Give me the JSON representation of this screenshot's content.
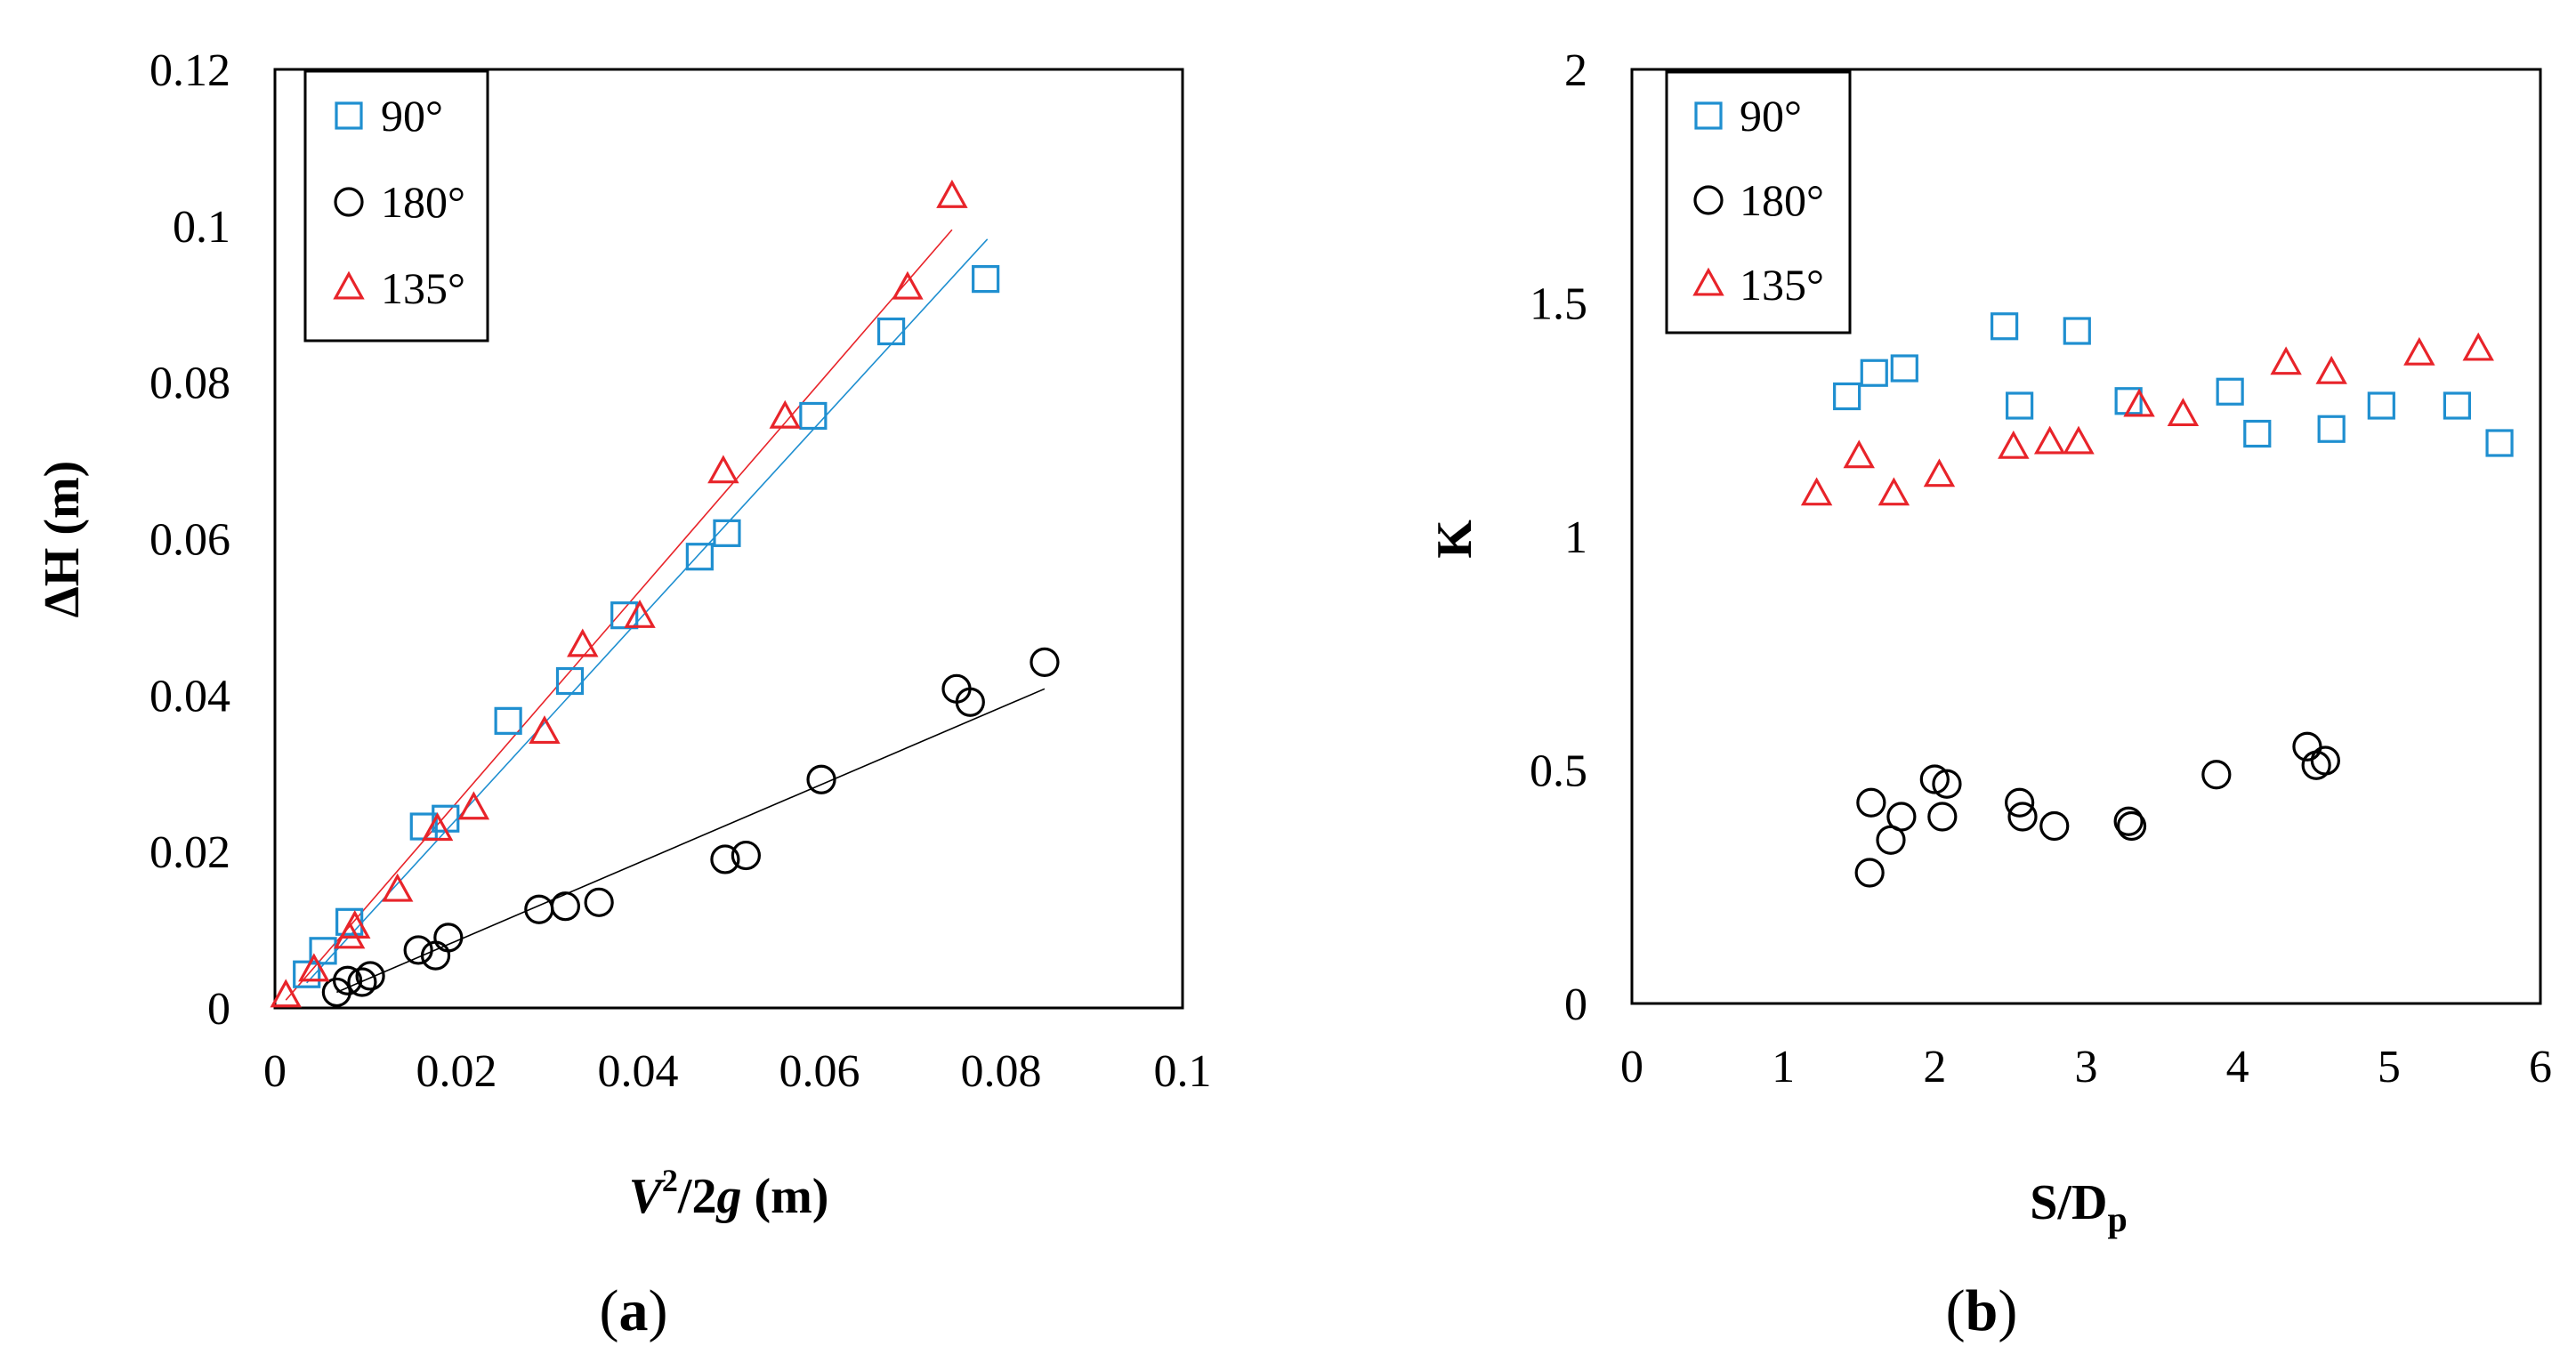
{
  "chart_data": [
    {
      "type": "scatter",
      "panel_label": "(a)",
      "panel_letter": "a",
      "xlabel_var": "V",
      "xlabel_sup": "2",
      "xlabel_slash": "/2",
      "xlabel_g": "g",
      "xlabel_unit": " (m)",
      "ylabel": "ΔH (m)",
      "xlim": [
        0,
        0.1
      ],
      "ylim": [
        0,
        0.12
      ],
      "xticks": [
        "0",
        "0.02",
        "0.04",
        "0.06",
        "0.08",
        "0.1"
      ],
      "yticks": [
        "0",
        "0.02",
        "0.04",
        "0.06",
        "0.08",
        "0.1",
        "0.12"
      ],
      "legend_position": "top-left",
      "series": [
        {
          "name": "90°",
          "marker": "square",
          "color": "#1f8fd0",
          "x": [
            0.0035,
            0.0053,
            0.0082,
            0.0164,
            0.0188,
            0.0257,
            0.0325,
            0.0385,
            0.0468,
            0.0498,
            0.0593,
            0.0679,
            0.0783
          ],
          "y": [
            0.0043,
            0.0073,
            0.011,
            0.0232,
            0.0242,
            0.0367,
            0.0418,
            0.0502,
            0.0577,
            0.0607,
            0.0757,
            0.0865,
            0.0932
          ],
          "trendline": [
            [
              0.0035,
              0.0032
            ],
            [
              0.0785,
              0.0983
            ]
          ]
        },
        {
          "name": "180°",
          "marker": "circle",
          "color": "#000000",
          "x": [
            0.0068,
            0.008,
            0.0096,
            0.0105,
            0.0158,
            0.0177,
            0.0191,
            0.0291,
            0.032,
            0.0357,
            0.0496,
            0.0519,
            0.0602,
            0.0751,
            0.0766,
            0.0848
          ],
          "y": [
            0.002,
            0.0035,
            0.0033,
            0.0041,
            0.0074,
            0.0067,
            0.009,
            0.0126,
            0.013,
            0.0135,
            0.019,
            0.0195,
            0.0292,
            0.0408,
            0.0391,
            0.0442
          ],
          "trendline": [
            [
              0.0068,
              0.002
            ],
            [
              0.0848,
              0.0408
            ]
          ]
        },
        {
          "name": "135°",
          "marker": "triangle",
          "color": "#e8242a",
          "x": [
            0.0012,
            0.0043,
            0.0082,
            0.0088,
            0.0135,
            0.0179,
            0.0219,
            0.0297,
            0.0339,
            0.0402,
            0.0494,
            0.0562,
            0.0697,
            0.0746
          ],
          "y": [
            0.0015,
            0.0048,
            0.009,
            0.0103,
            0.015,
            0.0228,
            0.0255,
            0.0352,
            0.0463,
            0.05,
            0.0685,
            0.0755,
            0.092,
            0.1037
          ],
          "trendline": [
            [
              0.0012,
              0.001
            ],
            [
              0.0746,
              0.0995
            ]
          ]
        }
      ]
    },
    {
      "type": "scatter",
      "panel_label": "(b)",
      "panel_letter": "b",
      "xlabel_main": "S/D",
      "xlabel_sub": "p",
      "ylabel": "K",
      "xlim": [
        0,
        6
      ],
      "ylim": [
        0,
        2
      ],
      "xticks": [
        "0",
        "1",
        "2",
        "3",
        "4",
        "5",
        "6"
      ],
      "yticks": [
        "0",
        "0.5",
        "1",
        "1.5",
        "2"
      ],
      "legend_position": "top-left",
      "series": [
        {
          "name": "90°",
          "marker": "square",
          "color": "#1f8fd0",
          "x": [
            1.42,
            1.6,
            1.8,
            2.46,
            2.56,
            2.94,
            3.28,
            3.95,
            4.13,
            4.62,
            4.95,
            5.45,
            5.73
          ],
          "y": [
            1.3,
            1.35,
            1.36,
            1.45,
            1.28,
            1.44,
            1.29,
            1.31,
            1.22,
            1.23,
            1.28,
            1.28,
            1.2
          ]
        },
        {
          "name": "180°",
          "marker": "circle",
          "color": "#000000",
          "x": [
            1.57,
            1.58,
            1.71,
            1.78,
            2.0,
            2.05,
            2.08,
            2.56,
            2.58,
            2.79,
            3.28,
            3.3,
            3.86,
            4.46,
            4.52,
            4.58
          ],
          "y": [
            0.28,
            0.43,
            0.35,
            0.4,
            0.48,
            0.4,
            0.47,
            0.43,
            0.4,
            0.38,
            0.39,
            0.38,
            0.49,
            0.55,
            0.51,
            0.52
          ]
        },
        {
          "name": "135°",
          "marker": "triangle",
          "color": "#e8242a",
          "x": [
            1.22,
            1.5,
            1.73,
            2.03,
            2.52,
            2.76,
            2.95,
            3.35,
            3.64,
            4.32,
            4.62,
            5.2,
            5.59
          ],
          "y": [
            1.09,
            1.17,
            1.09,
            1.13,
            1.19,
            1.2,
            1.2,
            1.28,
            1.26,
            1.37,
            1.35,
            1.39,
            1.4
          ]
        }
      ]
    }
  ]
}
